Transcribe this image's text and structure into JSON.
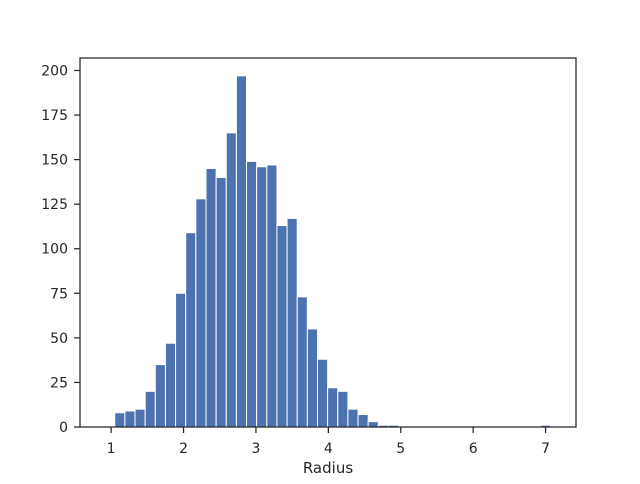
{
  "chart_data": {
    "type": "bar",
    "title": "",
    "xlabel": "Radius",
    "ylabel": "",
    "xlim": [
      0.57,
      7.42
    ],
    "ylim": [
      0,
      207
    ],
    "bin_edges": [
      1.05,
      1.19,
      1.33,
      1.47,
      1.61,
      1.75,
      1.89,
      2.03,
      2.17,
      2.31,
      2.45,
      2.59,
      2.73,
      2.87,
      3.01,
      3.15,
      3.29,
      3.43,
      3.57,
      3.71,
      3.85,
      3.99,
      4.13,
      4.27,
      4.41,
      4.55,
      4.69,
      4.83,
      4.97,
      5.11,
      5.25,
      5.39,
      5.53,
      5.67,
      5.81,
      5.95,
      6.09,
      6.23,
      6.37,
      6.51,
      6.65,
      6.79,
      6.93,
      7.07
    ],
    "values": [
      8,
      9,
      10,
      20,
      35,
      47,
      75,
      109,
      128,
      145,
      140,
      165,
      197,
      149,
      146,
      147,
      113,
      117,
      73,
      55,
      38,
      22,
      20,
      10,
      7,
      3,
      1,
      1,
      0,
      0,
      0,
      0,
      0,
      0,
      0,
      0,
      0,
      0,
      0,
      0,
      0,
      0,
      1
    ],
    "xticks": [
      1,
      2,
      3,
      4,
      5,
      6,
      7
    ],
    "yticks": [
      0,
      25,
      50,
      75,
      100,
      125,
      150,
      175,
      200
    ],
    "bar_color": "#4c72b0",
    "bar_edge_color": "#ffffff",
    "axes_color": "#262626",
    "grid": false
  }
}
